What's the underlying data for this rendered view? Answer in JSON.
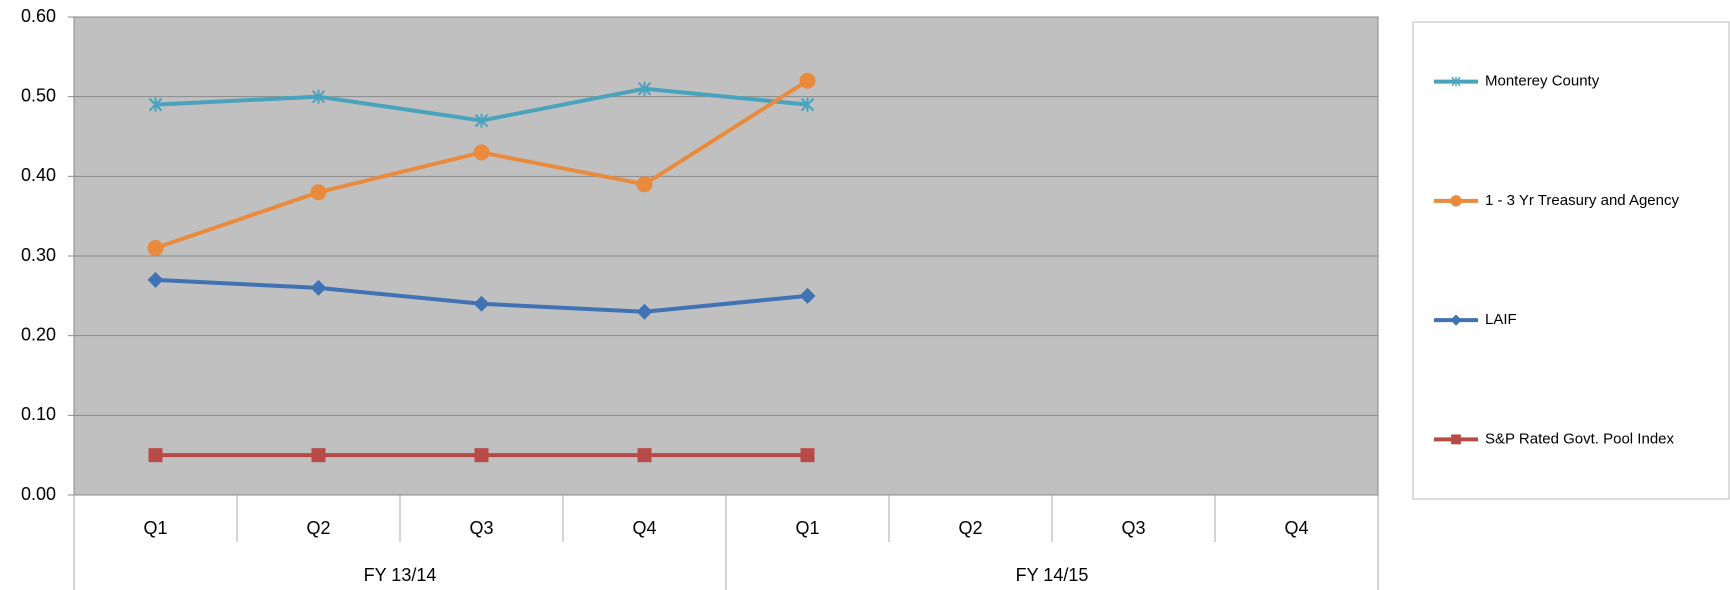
{
  "chart_data": {
    "type": "line",
    "categories": [
      "Q1",
      "Q2",
      "Q3",
      "Q4",
      "Q1",
      "Q2",
      "Q3",
      "Q4"
    ],
    "category_groups": [
      {
        "label": "FY 13/14",
        "count": 4
      },
      {
        "label": "FY 14/15",
        "count": 4
      }
    ],
    "series": [
      {
        "name": "Monterey County",
        "color": "#4aa3bc",
        "marker": "asterisk",
        "values": [
          0.49,
          0.5,
          0.47,
          0.51,
          0.49,
          null,
          null,
          null
        ]
      },
      {
        "name": "1 - 3 Yr Treasury and Agency",
        "color": "#ea8a3c",
        "marker": "circle",
        "values": [
          0.31,
          0.38,
          0.43,
          0.39,
          0.52,
          null,
          null,
          null
        ]
      },
      {
        "name": "LAIF",
        "color": "#4072b4",
        "marker": "diamond",
        "values": [
          0.27,
          0.26,
          0.24,
          0.23,
          0.25,
          null,
          null,
          null
        ]
      },
      {
        "name": "S&P Rated Govt. Pool Index",
        "color": "#b84a48",
        "marker": "square",
        "values": [
          0.05,
          0.05,
          0.05,
          0.05,
          0.05,
          null,
          null,
          null
        ]
      }
    ],
    "ylim": [
      0,
      0.6
    ],
    "yticks": [
      {
        "value": 0,
        "label": "0.00"
      },
      {
        "value": 0.1,
        "label": "0.10"
      },
      {
        "value": 0.2,
        "label": "0.20"
      },
      {
        "value": 0.3,
        "label": "0.30"
      },
      {
        "value": 0.4,
        "label": "0.40"
      },
      {
        "value": 0.5,
        "label": "0.50"
      },
      {
        "value": 0.6,
        "label": "0.60"
      }
    ],
    "grid": true,
    "legend": "right",
    "background": "#c0c0c0"
  }
}
